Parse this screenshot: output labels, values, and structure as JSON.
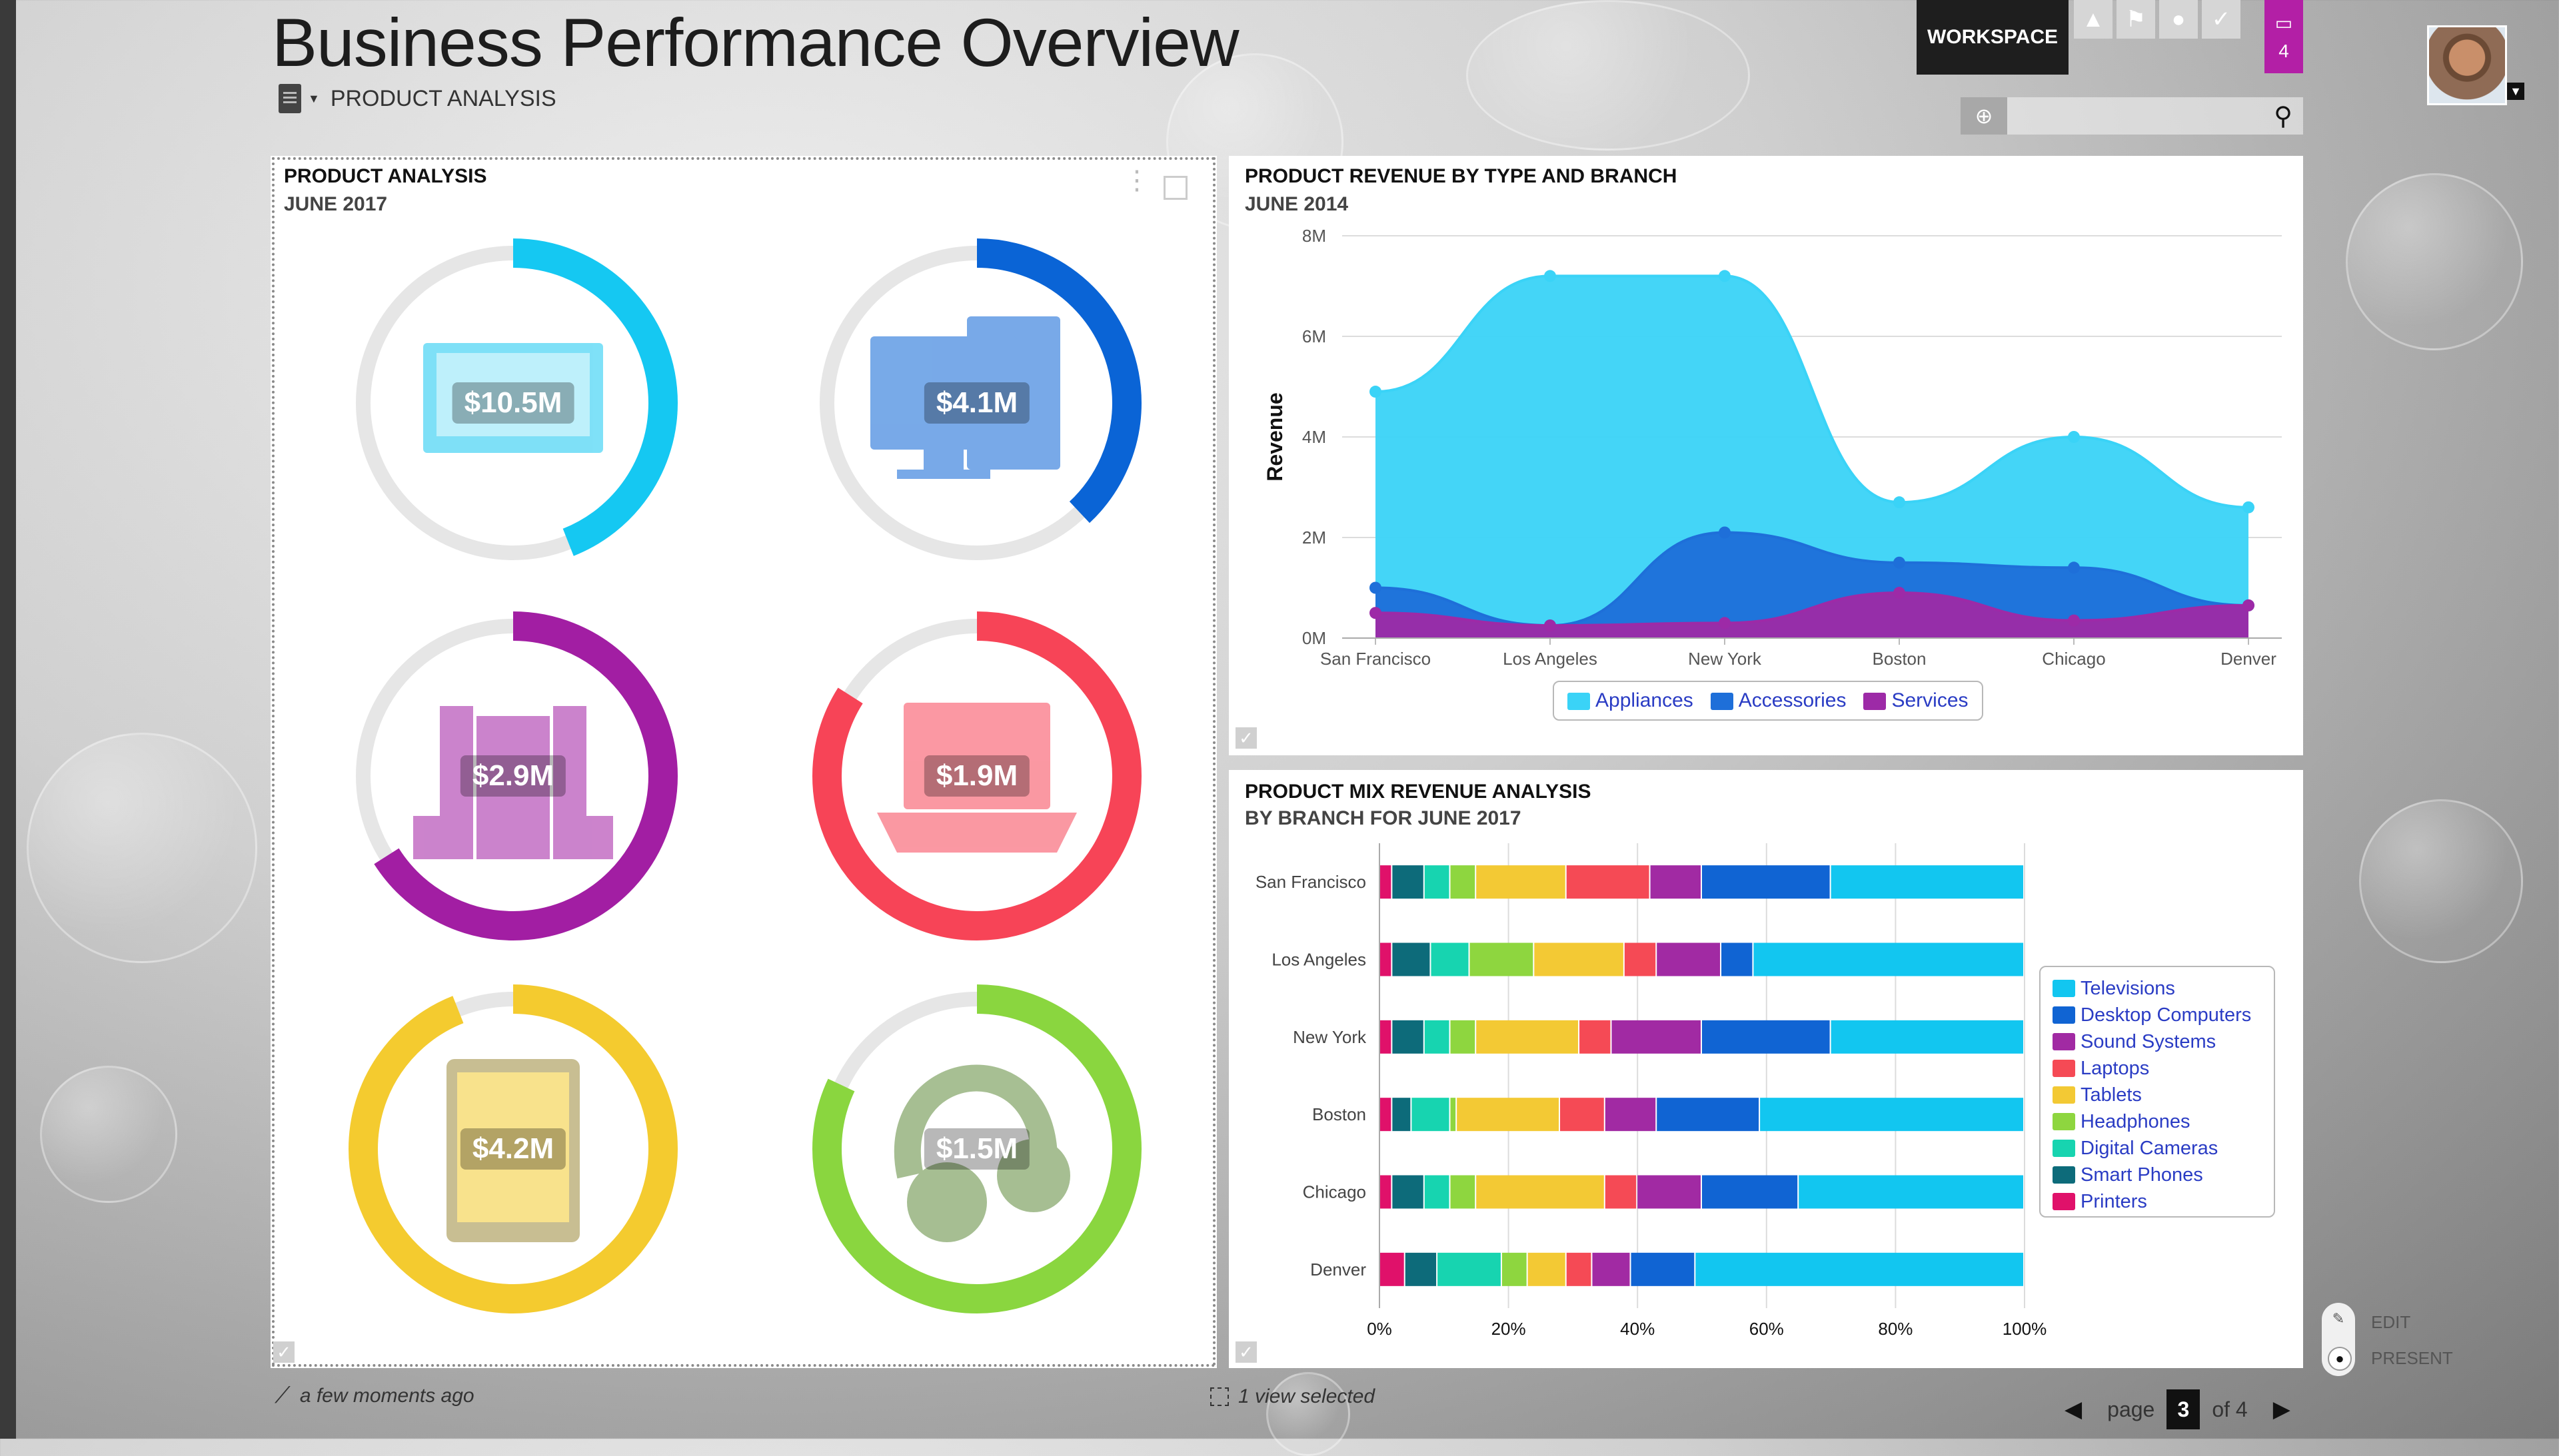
{
  "header": {
    "title": "Business Performance Overview",
    "breadcrumb": "PRODUCT ANALYSIS",
    "workspace_label": "WORKSPACE",
    "notification_count": "4",
    "search_placeholder": ""
  },
  "product_panel": {
    "title": "PRODUCT ANALYSIS",
    "subtitle": "JUNE 2017",
    "donuts": [
      {
        "amount": "$10.5M",
        "color": "#15c8f2",
        "fraction": 0.44,
        "icon": "television-icon"
      },
      {
        "amount": "$4.1M",
        "color": "#0a64d6",
        "fraction": 0.38,
        "icon": "desktop-computer-icon"
      },
      {
        "amount": "$2.9M",
        "color": "#a21ea3",
        "fraction": 0.66,
        "icon": "sound-system-icon"
      },
      {
        "amount": "$1.9M",
        "color": "#f74457",
        "fraction": 0.84,
        "icon": "laptop-icon"
      },
      {
        "amount": "$4.2M",
        "color": "#f4cb2f",
        "fraction": 0.94,
        "icon": "tablet-icon"
      },
      {
        "amount": "$1.5M",
        "color": "#8ad63f",
        "fraction": 0.82,
        "icon": "headphones-icon"
      }
    ]
  },
  "revenue_panel": {
    "title": "PRODUCT REVENUE BY TYPE AND BRANCH",
    "subtitle": "JUNE 2014"
  },
  "mix_panel": {
    "title": "PRODUCT MIX REVENUE ANALYSIS",
    "subtitle": "BY BRANCH FOR JUNE 2017"
  },
  "chart_data": [
    {
      "type": "area",
      "categories": [
        "San Francisco",
        "Los Angeles",
        "New York",
        "Boston",
        "Chicago",
        "Denver"
      ],
      "ylabel": "Revenue",
      "ylim": [
        0,
        8000000
      ],
      "yticks": [
        "0M",
        "2M",
        "4M",
        "6M",
        "8M"
      ],
      "grid": true,
      "legend_position": "bottom",
      "series": [
        {
          "name": "Appliances",
          "color": "#3ad3f7",
          "values": [
            4900000,
            7200000,
            7200000,
            2700000,
            4000000,
            2600000
          ]
        },
        {
          "name": "Accessories",
          "color": "#1e6fd9",
          "values": [
            1000000,
            250000,
            2100000,
            1500000,
            1400000,
            650000
          ]
        },
        {
          "name": "Services",
          "color": "#9d2aa7",
          "values": [
            500000,
            250000,
            300000,
            900000,
            350000,
            650000
          ]
        }
      ]
    },
    {
      "type": "bar",
      "orientation": "horizontal",
      "stacked": "percent",
      "categories": [
        "San Francisco",
        "Los Angeles",
        "New York",
        "Boston",
        "Chicago",
        "Denver"
      ],
      "xticks": [
        "0%",
        "20%",
        "40%",
        "60%",
        "80%",
        "100%"
      ],
      "grid": true,
      "legend_position": "right",
      "series": [
        {
          "name": "Printers",
          "color": "#e0116a",
          "values": [
            2,
            2,
            2,
            2,
            2,
            4
          ]
        },
        {
          "name": "Smart Phones",
          "color": "#0d6b7a",
          "values": [
            5,
            6,
            5,
            3,
            5,
            5
          ]
        },
        {
          "name": "Digital Cameras",
          "color": "#17d4b0",
          "values": [
            4,
            6,
            4,
            6,
            4,
            10
          ]
        },
        {
          "name": "Headphones",
          "color": "#8ed63f",
          "values": [
            4,
            10,
            4,
            1,
            4,
            4
          ]
        },
        {
          "name": "Tablets",
          "color": "#f3c934",
          "values": [
            14,
            14,
            16,
            16,
            20,
            6
          ]
        },
        {
          "name": "Laptops",
          "color": "#f54a55",
          "values": [
            13,
            5,
            5,
            7,
            5,
            4
          ]
        },
        {
          "name": "Sound Systems",
          "color": "#a12aa3",
          "values": [
            8,
            10,
            14,
            8,
            10,
            6
          ]
        },
        {
          "name": "Desktop Computers",
          "color": "#1064d3",
          "values": [
            20,
            5,
            20,
            16,
            15,
            10
          ]
        },
        {
          "name": "Televisions",
          "color": "#12c6f0",
          "values": [
            30,
            42,
            30,
            41,
            35,
            51
          ]
        }
      ]
    }
  ],
  "footer": {
    "updated": "a few moments ago",
    "selection": "1 view selected",
    "page_label": "page",
    "page_current": "3",
    "page_total": "of 4",
    "edit_label": "EDIT",
    "present_label": "PRESENT"
  }
}
